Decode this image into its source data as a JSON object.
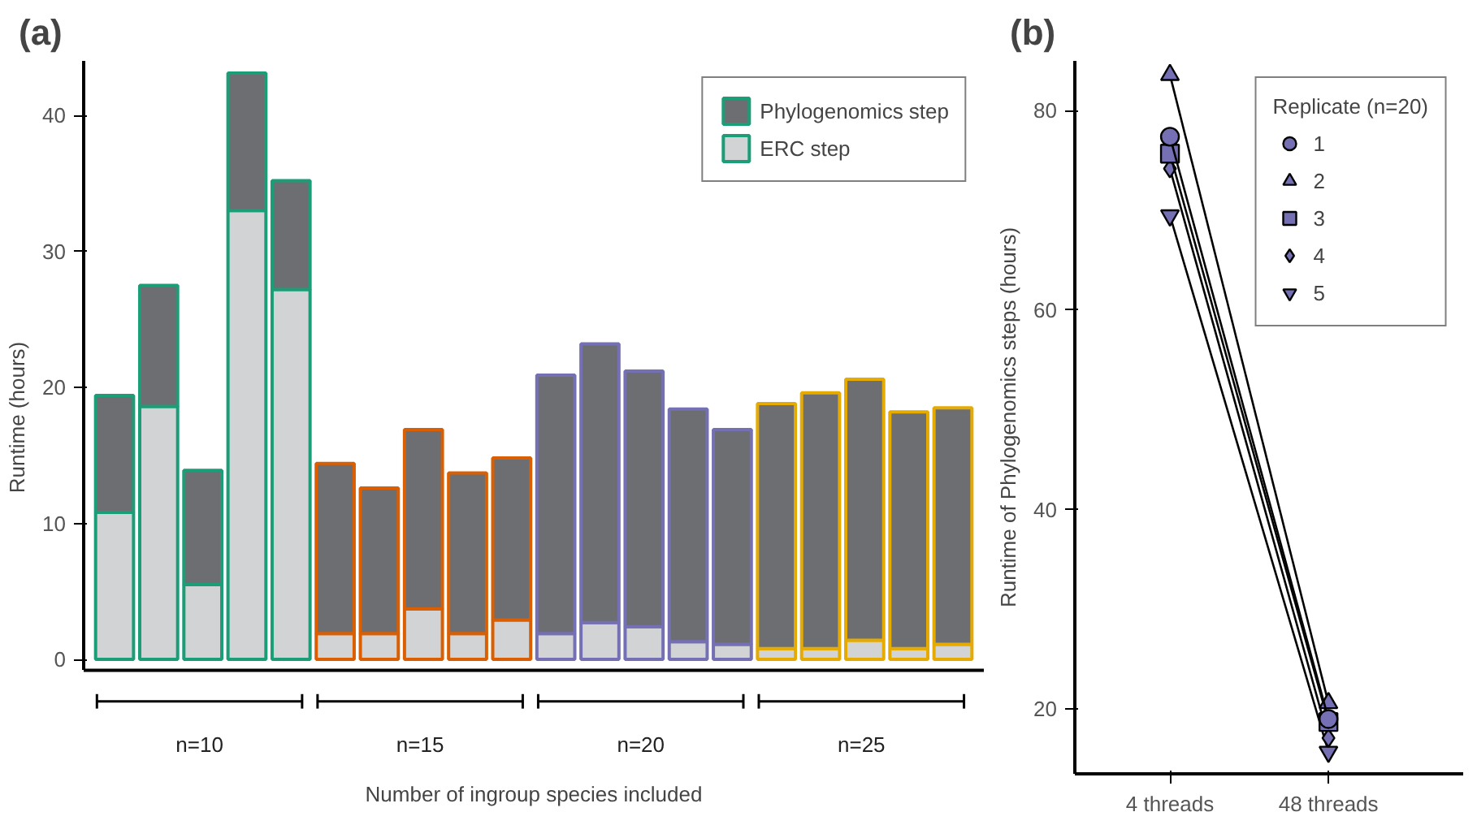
{
  "chart_data": [
    {
      "type": "bar",
      "title": "(a)",
      "xlabel": "Number of ingroup species included",
      "ylabel": "Runtime (hours)",
      "categories": [
        null,
        null,
        null,
        null,
        null,
        null,
        null,
        null,
        null,
        null,
        null,
        null,
        null,
        null,
        null,
        null,
        null,
        null,
        null,
        null
      ],
      "stacked": true,
      "colors": [
        "#1b9e77",
        "#1b9e77",
        "#1b9e77",
        "#1b9e77",
        "#1b9e77",
        "#d95f02",
        "#d95f02",
        "#d95f02",
        "#d95f02",
        "#d95f02",
        "#7570b3",
        "#7570b3",
        "#7570b3",
        "#7570b3",
        "#7570b3",
        "#e6ab02",
        "#e6ab02",
        "#e6ab02",
        "#e6ab02",
        "#e6ab02"
      ],
      "series": [
        {
          "name": "ERC step",
          "color": "#d1d3d4",
          "values": [
            10.8,
            18.6,
            5.5,
            33.0,
            27.2,
            1.9,
            1.9,
            3.7,
            1.9,
            2.9,
            1.9,
            2.7,
            2.4,
            1.3,
            1.1,
            0.8,
            0.8,
            1.4,
            0.8,
            1.1
          ]
        },
        {
          "name": "Phylogenomics step",
          "color": "#6d6e71",
          "values": [
            8.6,
            8.9,
            8.4,
            10.1,
            8.0,
            12.5,
            10.7,
            13.2,
            11.8,
            11.9,
            19.0,
            20.5,
            18.8,
            17.1,
            15.8,
            18.0,
            18.8,
            19.2,
            17.4,
            17.4
          ]
        }
      ],
      "ylim": [
        -0.8,
        44
      ],
      "yticks": [
        0,
        10,
        20,
        30,
        40
      ],
      "grid": false,
      "legend": "top right",
      "annotations": [
        "n=10",
        "n=15",
        "n=20",
        "n=25"
      ]
    },
    {
      "type": "line",
      "title": "(b)",
      "ylabel": "Runtime of Phylogenomics steps (hours)",
      "categories": [
        "4 threads",
        "48 threads"
      ],
      "legend_title": "Replicate (n=20)",
      "series": [
        {
          "name": "1",
          "color": "#7570b3",
          "marker": "circle",
          "values": [
            77.4,
            19.0
          ]
        },
        {
          "name": "2",
          "color": "#7570b3",
          "marker": "triangle",
          "values": [
            83.6,
            20.6
          ]
        },
        {
          "name": "3",
          "color": "#7570b3",
          "marker": "square",
          "values": [
            75.7,
            18.7
          ]
        },
        {
          "name": "4",
          "color": "#7570b3",
          "marker": "diamond",
          "values": [
            74.2,
            17.1
          ]
        },
        {
          "name": "5",
          "color": "#7570b3",
          "marker": "triangle_down",
          "values": [
            69.5,
            15.7
          ]
        }
      ],
      "ylim": [
        13.5,
        85
      ],
      "yticks": [
        20,
        40,
        60,
        80
      ],
      "grid": false,
      "legend": "top right"
    }
  ]
}
